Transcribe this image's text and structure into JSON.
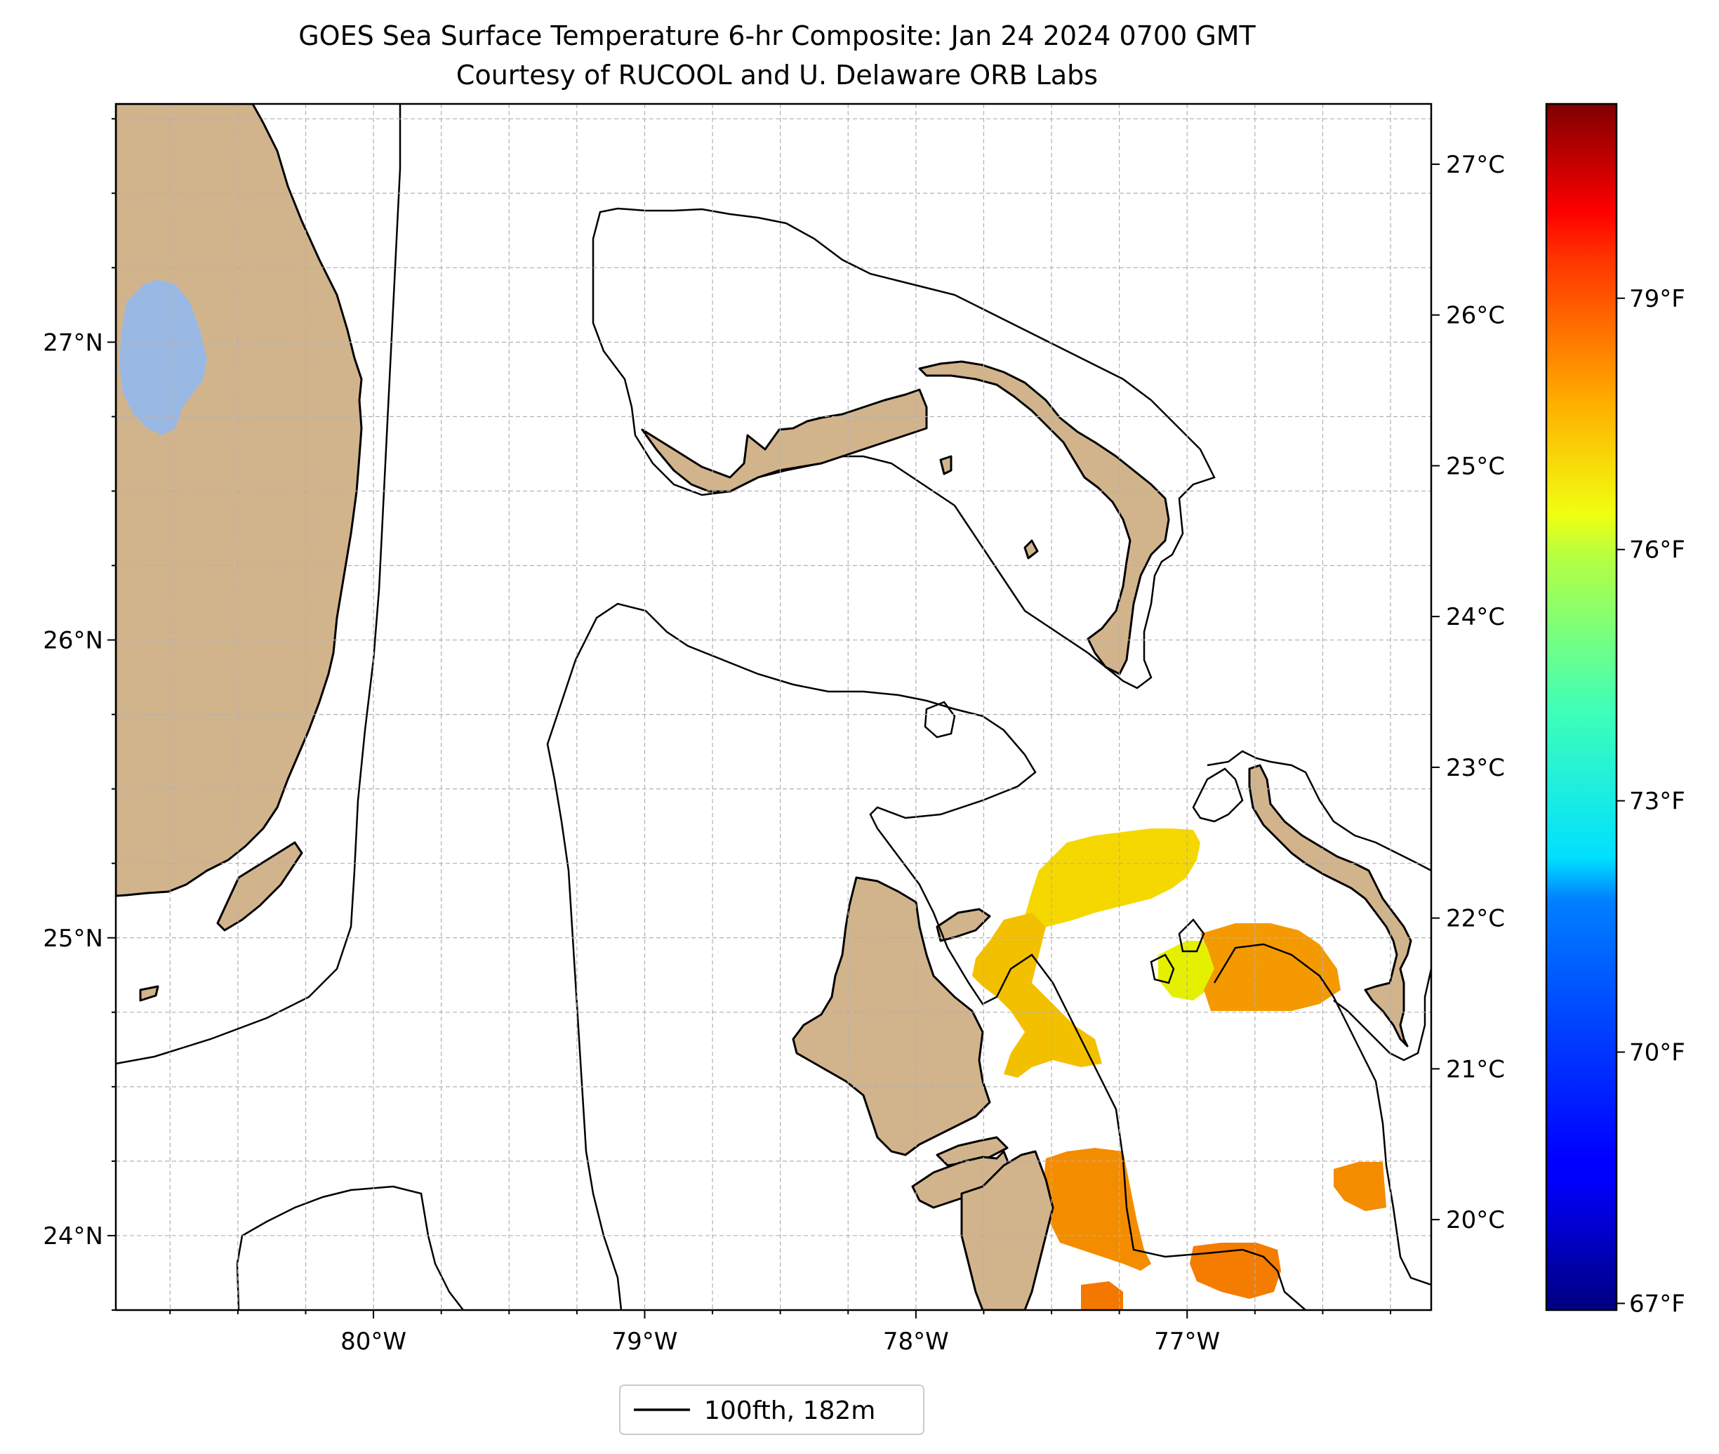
{
  "title": {
    "line1": "GOES Sea Surface Temperature 6-hr Composite: Jan 24 2024 0700 GMT",
    "line2": "Courtesy of RUCOOL and U. Delaware ORB Labs"
  },
  "map": {
    "lon_range": [
      -80.95,
      -76.1
    ],
    "lat_range": [
      23.75,
      27.8
    ],
    "lon_ticks": [
      {
        "value": -80,
        "label": "80°W"
      },
      {
        "value": -79,
        "label": "79°W"
      },
      {
        "value": -78,
        "label": "78°W"
      },
      {
        "value": -77,
        "label": "77°W"
      }
    ],
    "lat_ticks": [
      {
        "value": 24,
        "label": "24°N"
      },
      {
        "value": 25,
        "label": "25°N"
      },
      {
        "value": 26,
        "label": "26°N"
      },
      {
        "value": 27,
        "label": "27°N"
      }
    ],
    "grid": true,
    "colors": {
      "land": "#d2b48c",
      "lake": "#9ab8e4",
      "contour": "#000000",
      "grid": "#b0b0b0"
    }
  },
  "colorbar": {
    "colormap": "jet",
    "celsius_range": [
      19.4,
      27.4
    ],
    "celsius_ticks": [
      {
        "value": 20,
        "label": "20°C"
      },
      {
        "value": 21,
        "label": "21°C"
      },
      {
        "value": 22,
        "label": "22°C"
      },
      {
        "value": 23,
        "label": "23°C"
      },
      {
        "value": 24,
        "label": "24°C"
      },
      {
        "value": 25,
        "label": "25°C"
      },
      {
        "value": 26,
        "label": "26°C"
      },
      {
        "value": 27,
        "label": "27°C"
      }
    ],
    "fahrenheit_ticks": [
      {
        "value": 67,
        "label": "67°F"
      },
      {
        "value": 70,
        "label": "70°F"
      },
      {
        "value": 73,
        "label": "73°F"
      },
      {
        "value": 76,
        "label": "76°F"
      },
      {
        "value": 79,
        "label": "79°F"
      }
    ]
  },
  "legend": {
    "location": "bottom-center",
    "entry": "100fth, 182m"
  }
}
